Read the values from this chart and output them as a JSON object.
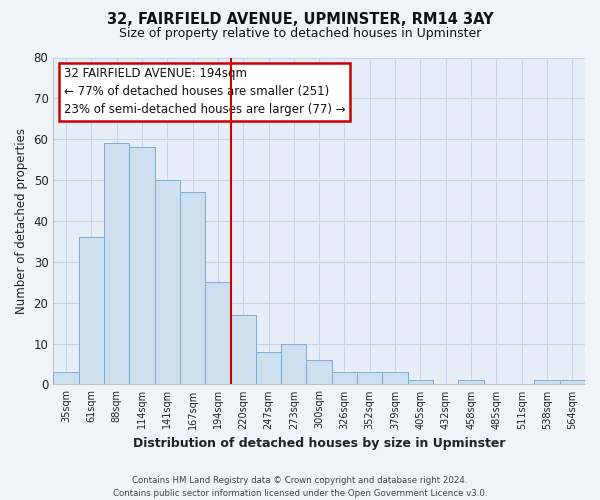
{
  "title": "32, FAIRFIELD AVENUE, UPMINSTER, RM14 3AY",
  "subtitle": "Size of property relative to detached houses in Upminster",
  "xlabel": "Distribution of detached houses by size in Upminster",
  "ylabel": "Number of detached properties",
  "bins": [
    "35sqm",
    "61sqm",
    "88sqm",
    "114sqm",
    "141sqm",
    "167sqm",
    "194sqm",
    "220sqm",
    "247sqm",
    "273sqm",
    "300sqm",
    "326sqm",
    "352sqm",
    "379sqm",
    "405sqm",
    "432sqm",
    "458sqm",
    "485sqm",
    "511sqm",
    "538sqm",
    "564sqm"
  ],
  "values": [
    3,
    36,
    59,
    58,
    50,
    47,
    25,
    17,
    8,
    10,
    6,
    3,
    3,
    3,
    1,
    0,
    1,
    0,
    0,
    1,
    1
  ],
  "bar_color": "#cde0f0",
  "bar_edge_color": "#7aadd4",
  "highlight_index": 6,
  "highlight_color": "#cc0000",
  "ylim": [
    0,
    80
  ],
  "yticks": [
    0,
    10,
    20,
    30,
    40,
    50,
    60,
    70,
    80
  ],
  "annotation_title": "32 FAIRFIELD AVENUE: 194sqm",
  "annotation_line1": "← 77% of detached houses are smaller (251)",
  "annotation_line2": "23% of semi-detached houses are larger (77) →",
  "footer1": "Contains HM Land Registry data © Crown copyright and database right 2024.",
  "footer2": "Contains public sector information licensed under the Open Government Licence v3.0.",
  "background_color": "#f0f4fa",
  "plot_bg_color": "#e8eef8",
  "grid_color": "#c8d4e8",
  "annotation_box_color": "#ffffff",
  "annotation_border_color": "#cc0000"
}
